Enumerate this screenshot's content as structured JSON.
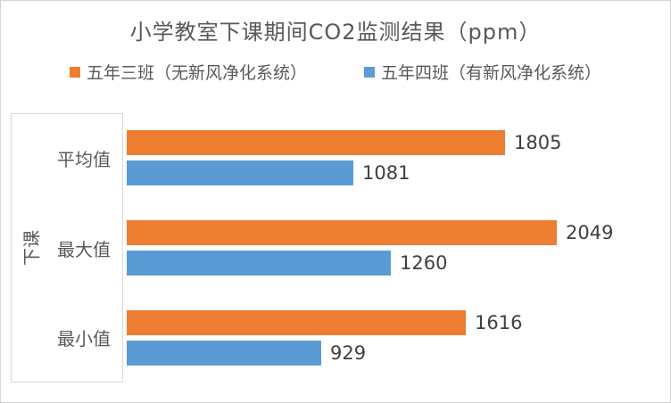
{
  "chart_data": {
    "type": "bar",
    "orientation": "horizontal",
    "title": "小学教室下课期间CO2监测结果（ppm）",
    "group_label": "下课",
    "categories": [
      "平均值",
      "最大值",
      "最小值"
    ],
    "series": [
      {
        "name": "五年三班（无新风净化系统）",
        "color": "#ED7D31",
        "values": [
          1805,
          2049,
          1616
        ]
      },
      {
        "name": "五年四班（有新风净化系统）",
        "color": "#5B9BD5",
        "values": [
          1081,
          1260,
          929
        ]
      }
    ],
    "data_labels": [
      {
        "category": "平均值",
        "values": [
          "1805",
          "1081"
        ]
      },
      {
        "category": "最大值",
        "values": [
          "2049",
          "1260"
        ]
      },
      {
        "category": "最小值",
        "values": [
          "1616",
          "929"
        ]
      }
    ],
    "xlim": [
      0,
      2600
    ],
    "gridlines": false,
    "legend_position": "top",
    "colors": {
      "text_dark": "#404040",
      "text_gray": "#595959",
      "frame": "#D9D9D9"
    }
  }
}
